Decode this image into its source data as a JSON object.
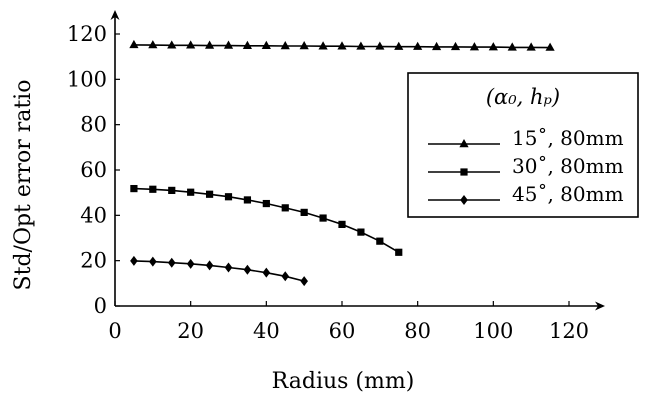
{
  "chart_data": {
    "type": "line",
    "xlabel": "Radius (mm)",
    "ylabel": "Std/Opt error ratio",
    "xlim": [
      0,
      125
    ],
    "ylim": [
      0,
      125
    ],
    "xticks": [
      0,
      20,
      40,
      60,
      80,
      100,
      120
    ],
    "yticks": [
      0,
      20,
      40,
      60,
      80,
      100,
      120
    ],
    "grid": false,
    "legend": {
      "title": "(α₀, hₚ)",
      "placement": "right"
    },
    "series": [
      {
        "name": "15˚, 80mm",
        "marker": "triangle",
        "x": [
          5,
          10,
          15,
          20,
          25,
          30,
          35,
          40,
          45,
          50,
          55,
          60,
          65,
          70,
          75,
          80,
          85,
          90,
          95,
          100,
          105,
          110,
          115
        ],
        "y": [
          115.2,
          115.1,
          115.0,
          115.0,
          114.9,
          114.9,
          114.8,
          114.8,
          114.7,
          114.7,
          114.6,
          114.6,
          114.5,
          114.5,
          114.4,
          114.4,
          114.3,
          114.3,
          114.2,
          114.2,
          114.1,
          114.1,
          114.0
        ]
      },
      {
        "name": "30˚, 80mm",
        "marker": "square",
        "x": [
          5,
          10,
          15,
          20,
          25,
          30,
          35,
          40,
          45,
          50,
          55,
          60,
          65,
          70,
          75
        ],
        "y": [
          51.8,
          51.5,
          51.0,
          50.2,
          49.3,
          48.2,
          46.8,
          45.2,
          43.3,
          41.3,
          38.8,
          36.0,
          32.6,
          28.6,
          23.7
        ]
      },
      {
        "name": "45˚, 80mm",
        "marker": "diamond",
        "x": [
          5,
          10,
          15,
          20,
          25,
          30,
          35,
          40,
          45,
          50
        ],
        "y": [
          19.9,
          19.6,
          19.1,
          18.6,
          17.9,
          17.0,
          16.0,
          14.7,
          13.1,
          11.0
        ]
      }
    ]
  }
}
